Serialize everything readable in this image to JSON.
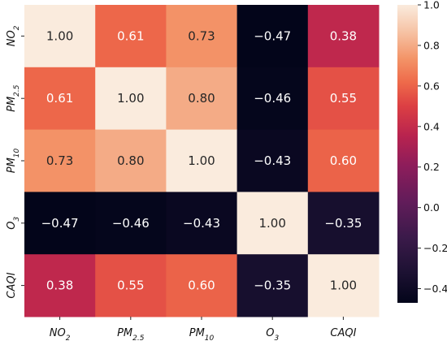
{
  "chart_data": {
    "type": "heatmap",
    "title": "",
    "row_labels": [
      {
        "base": "NO",
        "sub": "2"
      },
      {
        "base": "PM",
        "sub": "2.5"
      },
      {
        "base": "PM",
        "sub": "10"
      },
      {
        "base": "O",
        "sub": "3"
      },
      {
        "base": "CAQI",
        "sub": ""
      }
    ],
    "col_labels": [
      {
        "base": "NO",
        "sub": "2"
      },
      {
        "base": "PM",
        "sub": "2.5"
      },
      {
        "base": "PM",
        "sub": "10"
      },
      {
        "base": "O",
        "sub": "3"
      },
      {
        "base": "CAQI",
        "sub": ""
      }
    ],
    "values": [
      [
        1.0,
        0.61,
        0.73,
        -0.47,
        0.38
      ],
      [
        0.61,
        1.0,
        0.8,
        -0.46,
        0.55
      ],
      [
        0.73,
        0.8,
        1.0,
        -0.43,
        0.6
      ],
      [
        -0.47,
        -0.46,
        -0.43,
        1.0,
        -0.35
      ],
      [
        0.38,
        0.55,
        0.6,
        -0.35,
        1.0
      ]
    ],
    "value_format": "2 decimals, unicode minus",
    "colormap": "rocket",
    "color_range": [
      -0.47,
      1.0
    ],
    "colorbar": {
      "ticks": [
        1.0,
        0.8,
        0.6,
        0.4,
        0.2,
        0.0,
        -0.2,
        -0.4
      ],
      "tick_labels": [
        "1.0",
        "0.8",
        "0.6",
        "0.4",
        "0.2",
        "0.0",
        "−0.2",
        "−0.4"
      ],
      "placement": "right"
    },
    "grid": false
  }
}
